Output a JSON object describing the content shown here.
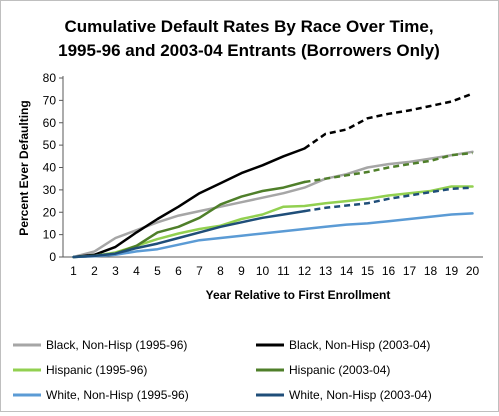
{
  "chart_data": {
    "type": "line",
    "title_lines": [
      "Cumulative Default Rates By Race Over Time,",
      "1995-96 and 2003-04 Entrants (Borrowers Only)"
    ],
    "xlabel": "Year Relative to First Enrollment",
    "ylabel": "Percent Ever Defaulting",
    "x": [
      1,
      2,
      3,
      4,
      5,
      6,
      7,
      8,
      9,
      10,
      11,
      12,
      13,
      14,
      15,
      16,
      17,
      18,
      19,
      20
    ],
    "xlim": [
      1,
      20
    ],
    "ylim": [
      0,
      80
    ],
    "yticks": [
      0,
      10,
      20,
      30,
      40,
      50,
      60,
      70,
      80
    ],
    "grid": false,
    "legend_position": "bottom",
    "series": [
      {
        "name": "Black, Non-Hisp (1995-96)",
        "color": "#a6a6a6",
        "dash_from_x": null,
        "values": [
          0,
          2.5,
          8.5,
          12,
          15.5,
          18.5,
          20.5,
          22.5,
          24.5,
          26.5,
          28.5,
          31,
          35,
          37,
          40,
          41.5,
          42.5,
          44,
          45.5,
          47
        ]
      },
      {
        "name": "Black, Non-Hisp (2003-04)",
        "color": "#000000",
        "dash_from_x": 12,
        "values": [
          0,
          1,
          4.5,
          11,
          17,
          22.5,
          28.5,
          33,
          37.5,
          41,
          45,
          48.5,
          55,
          57,
          62,
          64,
          65.5,
          67.5,
          69.5,
          73
        ]
      },
      {
        "name": "Hispanic (1995-96)",
        "color": "#92d050",
        "dash_from_x": null,
        "values": [
          0,
          0.5,
          2,
          5,
          8,
          10.5,
          12.5,
          14,
          17,
          19,
          22.5,
          22.8,
          24,
          25,
          26,
          27.5,
          28.5,
          29.5,
          31.5,
          31.5
        ]
      },
      {
        "name": "Hispanic (2003-04)",
        "color": "#4f7f2a",
        "dash_from_x": 12,
        "values": [
          0,
          0.5,
          1.5,
          5,
          11,
          13.5,
          17.5,
          23.5,
          27,
          29.5,
          31,
          33.5,
          35,
          36.5,
          38,
          40,
          41.5,
          43,
          45.5,
          46.5
        ]
      },
      {
        "name": "White, Non-Hisp (1995-96)",
        "color": "#5b9bd5",
        "dash_from_x": null,
        "values": [
          0,
          0.3,
          1,
          2.5,
          3.5,
          5.5,
          7.5,
          8.5,
          9.5,
          10.5,
          11.5,
          12.5,
          13.5,
          14.5,
          15,
          16,
          17,
          18,
          19,
          19.5
        ]
      },
      {
        "name": "White, Non-Hisp (2003-04)",
        "color": "#1f4e79",
        "dash_from_x": 12,
        "values": [
          0,
          0.5,
          1.5,
          4,
          6,
          8.5,
          11,
          13.5,
          15.5,
          17.5,
          19,
          20.5,
          22,
          23,
          24,
          26,
          27.5,
          29,
          30.5,
          31
        ]
      }
    ]
  }
}
